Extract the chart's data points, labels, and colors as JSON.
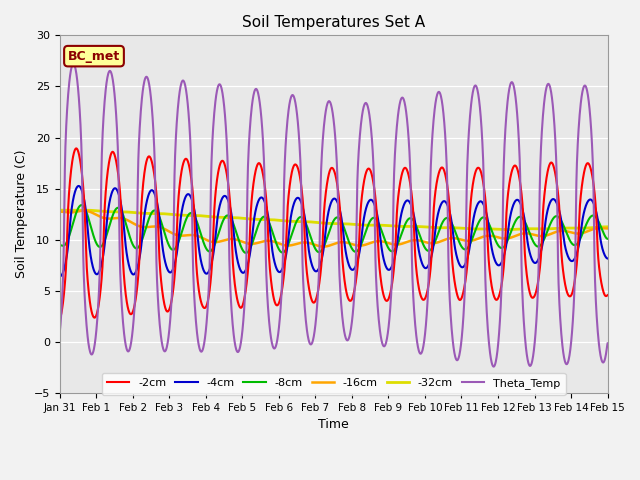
{
  "title": "Soil Temperatures Set A",
  "xlabel": "Time",
  "ylabel": "Soil Temperature (C)",
  "xlim": [
    0,
    15
  ],
  "ylim": [
    -5,
    30
  ],
  "yticks": [
    -5,
    0,
    5,
    10,
    15,
    20,
    25,
    30
  ],
  "xtick_labels": [
    "Jan 31",
    "Feb 1",
    "Feb 2",
    "Feb 3",
    "Feb 4",
    "Feb 5",
    "Feb 6",
    "Feb 7",
    "Feb 8",
    "Feb 9",
    "Feb 10",
    "Feb 11",
    "Feb 12",
    "Feb 13",
    "Feb 14",
    "Feb 15"
  ],
  "annotation_text": "BC_met",
  "annotation_box_facecolor": "#FFFF99",
  "annotation_box_edgecolor": "#8B0000",
  "annotation_text_color": "#8B0000",
  "fig_facecolor": "#F2F2F2",
  "axes_facecolor": "#E8E8E8",
  "series_colors": {
    "-2cm": "#FF0000",
    "-4cm": "#0000CD",
    "-8cm": "#00BB00",
    "-16cm": "#FFA500",
    "-32cm": "#DDDD00",
    "Theta_Temp": "#9B59B6"
  },
  "series_lw": {
    "-2cm": 1.5,
    "-4cm": 1.5,
    "-8cm": 1.5,
    "-16cm": 1.8,
    "-32cm": 2.0,
    "Theta_Temp": 1.5
  }
}
